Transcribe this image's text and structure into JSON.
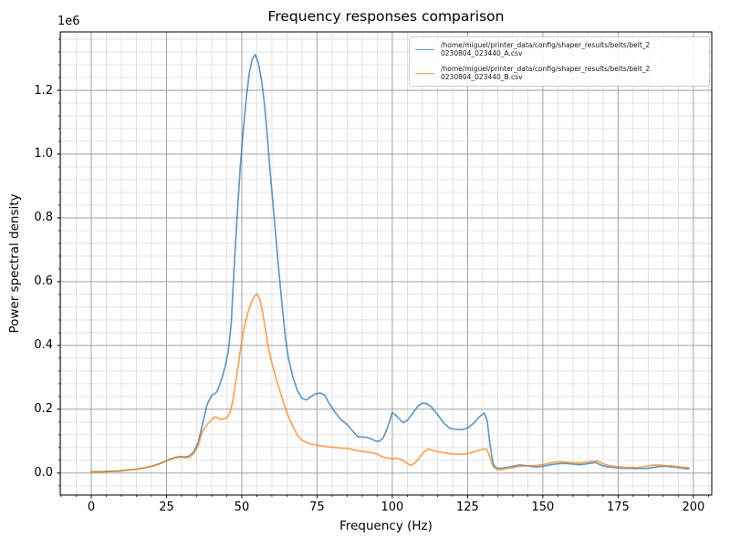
{
  "figure": {
    "title": "Frequency responses comparison",
    "background_color": "#ffffff"
  },
  "chart_data": {
    "type": "line",
    "title": "Frequency responses comparison",
    "xlabel": "Frequency (Hz)",
    "ylabel": "Power spectral density",
    "y_offset_label": "1e6",
    "y_units_note": "y values expressed in multiples of 1e6 (axis offset text)",
    "xlim": [
      -10.3,
      206.1
    ],
    "ylim": [
      -0.069,
      1.383
    ],
    "x_tick_values": [
      0,
      25,
      50,
      75,
      100,
      125,
      150,
      175,
      200
    ],
    "x_tick_labels": [
      "0",
      "25",
      "50",
      "75",
      "100",
      "125",
      "150",
      "175",
      "200"
    ],
    "y_tick_values": [
      0,
      0.2,
      0.4,
      0.6,
      0.8,
      1.0,
      1.2
    ],
    "y_tick_labels": [
      "0.0",
      "0.2",
      "0.4",
      "0.6",
      "0.8",
      "1.0",
      "1.2"
    ],
    "x_minor_step": 5,
    "y_minor_step": 0.04,
    "grid": "both",
    "legend_position": "upper right",
    "colors": {
      "series_a": "rgba(31,119,180,0.72)",
      "series_b": "rgba(255,127,14,0.72)",
      "grid_major": "#a3a3a3",
      "grid_minor": "#dcdcdc",
      "spine": "#000000",
      "legend_border": "#cccccc"
    },
    "series": [
      {
        "name": "belt_20230804_023440_A",
        "label_line1": "/home/miguel/printer_data/config/shaper_results/belts/belt_2",
        "label_line2": "0230804_023440_A.csv",
        "color_key": "series_a",
        "points": [
          [
            0,
            0.004
          ],
          [
            3,
            0.004
          ],
          [
            6,
            0.005
          ],
          [
            9,
            0.006
          ],
          [
            12,
            0.009
          ],
          [
            15,
            0.012
          ],
          [
            18,
            0.017
          ],
          [
            20,
            0.021
          ],
          [
            22,
            0.027
          ],
          [
            24,
            0.034
          ],
          [
            26,
            0.043
          ],
          [
            28,
            0.049
          ],
          [
            29.5,
            0.052
          ],
          [
            31,
            0.05
          ],
          [
            32.5,
            0.053
          ],
          [
            34,
            0.066
          ],
          [
            35.5,
            0.095
          ],
          [
            37,
            0.155
          ],
          [
            38.5,
            0.215
          ],
          [
            40,
            0.243
          ],
          [
            41.5,
            0.252
          ],
          [
            42.5,
            0.272
          ],
          [
            43.5,
            0.3
          ],
          [
            44.5,
            0.335
          ],
          [
            45.5,
            0.38
          ],
          [
            46.5,
            0.47
          ],
          [
            47.5,
            0.65
          ],
          [
            48.5,
            0.81
          ],
          [
            49.5,
            0.96
          ],
          [
            50.5,
            1.075
          ],
          [
            51.5,
            1.175
          ],
          [
            52.5,
            1.255
          ],
          [
            53.5,
            1.298
          ],
          [
            54.5,
            1.312
          ],
          [
            55.5,
            1.285
          ],
          [
            56.5,
            1.235
          ],
          [
            57.5,
            1.16
          ],
          [
            58.5,
            1.055
          ],
          [
            59.5,
            0.935
          ],
          [
            60.5,
            0.83
          ],
          [
            61.5,
            0.72
          ],
          [
            62.5,
            0.615
          ],
          [
            63.5,
            0.515
          ],
          [
            64.5,
            0.425
          ],
          [
            65.5,
            0.36
          ],
          [
            67,
            0.3
          ],
          [
            68.5,
            0.258
          ],
          [
            70,
            0.234
          ],
          [
            71.5,
            0.229
          ],
          [
            73,
            0.24
          ],
          [
            74.5,
            0.248
          ],
          [
            76,
            0.251
          ],
          [
            77.5,
            0.245
          ],
          [
            79,
            0.219
          ],
          [
            81,
            0.19
          ],
          [
            83,
            0.167
          ],
          [
            85,
            0.152
          ],
          [
            87,
            0.13
          ],
          [
            88.5,
            0.114
          ],
          [
            90,
            0.113
          ],
          [
            91.5,
            0.112
          ],
          [
            93,
            0.107
          ],
          [
            94.5,
            0.1
          ],
          [
            95.5,
            0.099
          ],
          [
            97,
            0.11
          ],
          [
            98.5,
            0.145
          ],
          [
            100,
            0.19
          ],
          [
            101.5,
            0.178
          ],
          [
            103.5,
            0.158
          ],
          [
            105,
            0.165
          ],
          [
            107,
            0.19
          ],
          [
            108.5,
            0.21
          ],
          [
            110,
            0.219
          ],
          [
            111.5,
            0.218
          ],
          [
            113,
            0.207
          ],
          [
            115,
            0.184
          ],
          [
            117,
            0.158
          ],
          [
            119,
            0.141
          ],
          [
            121,
            0.137
          ],
          [
            123,
            0.136
          ],
          [
            125,
            0.141
          ],
          [
            127,
            0.156
          ],
          [
            129,
            0.177
          ],
          [
            130.5,
            0.188
          ],
          [
            131.5,
            0.165
          ],
          [
            132.5,
            0.085
          ],
          [
            133.5,
            0.028
          ],
          [
            134.5,
            0.016
          ],
          [
            136,
            0.015
          ],
          [
            138,
            0.017
          ],
          [
            140,
            0.021
          ],
          [
            142,
            0.025
          ],
          [
            144,
            0.024
          ],
          [
            146,
            0.021
          ],
          [
            148,
            0.019
          ],
          [
            150,
            0.021
          ],
          [
            152,
            0.025
          ],
          [
            154,
            0.028
          ],
          [
            156,
            0.03
          ],
          [
            158,
            0.03
          ],
          [
            160,
            0.028
          ],
          [
            162,
            0.026
          ],
          [
            164,
            0.028
          ],
          [
            166,
            0.031
          ],
          [
            167.5,
            0.033
          ],
          [
            169,
            0.026
          ],
          [
            171,
            0.02
          ],
          [
            173,
            0.018
          ],
          [
            175,
            0.016
          ],
          [
            177,
            0.015
          ],
          [
            179,
            0.015
          ],
          [
            181,
            0.014
          ],
          [
            183,
            0.014
          ],
          [
            185,
            0.015
          ],
          [
            187,
            0.018
          ],
          [
            189,
            0.021
          ],
          [
            191,
            0.021
          ],
          [
            193,
            0.019
          ],
          [
            195,
            0.017
          ],
          [
            197,
            0.014
          ],
          [
            198.5,
            0.013
          ]
        ]
      },
      {
        "name": "belt_20230804_023440_B",
        "label_line1": "/home/miguel/printer_data/config/shaper_results/belts/belt_2",
        "label_line2": "0230804_023440_B.csv",
        "color_key": "series_b",
        "points": [
          [
            0,
            0.004
          ],
          [
            3,
            0.004
          ],
          [
            6,
            0.005
          ],
          [
            9,
            0.006
          ],
          [
            12,
            0.009
          ],
          [
            15,
            0.012
          ],
          [
            18,
            0.017
          ],
          [
            20,
            0.021
          ],
          [
            22,
            0.027
          ],
          [
            24,
            0.034
          ],
          [
            26,
            0.042
          ],
          [
            28,
            0.048
          ],
          [
            29.5,
            0.05
          ],
          [
            31,
            0.048
          ],
          [
            32.5,
            0.05
          ],
          [
            34,
            0.06
          ],
          [
            35.5,
            0.085
          ],
          [
            37,
            0.132
          ],
          [
            38.5,
            0.152
          ],
          [
            40,
            0.167
          ],
          [
            41,
            0.176
          ],
          [
            42,
            0.172
          ],
          [
            43,
            0.168
          ],
          [
            44,
            0.169
          ],
          [
            45,
            0.173
          ],
          [
            46,
            0.188
          ],
          [
            47,
            0.225
          ],
          [
            48,
            0.285
          ],
          [
            49,
            0.35
          ],
          [
            50,
            0.415
          ],
          [
            51,
            0.465
          ],
          [
            52,
            0.502
          ],
          [
            53,
            0.53
          ],
          [
            54,
            0.551
          ],
          [
            55,
            0.562
          ],
          [
            56,
            0.545
          ],
          [
            57,
            0.5
          ],
          [
            58,
            0.442
          ],
          [
            59,
            0.386
          ],
          [
            60,
            0.345
          ],
          [
            61,
            0.31
          ],
          [
            62,
            0.278
          ],
          [
            63,
            0.247
          ],
          [
            64,
            0.217
          ],
          [
            65,
            0.19
          ],
          [
            66,
            0.166
          ],
          [
            67,
            0.146
          ],
          [
            68,
            0.127
          ],
          [
            69,
            0.113
          ],
          [
            70,
            0.103
          ],
          [
            71.5,
            0.096
          ],
          [
            73,
            0.091
          ],
          [
            75,
            0.087
          ],
          [
            77,
            0.085
          ],
          [
            79,
            0.082
          ],
          [
            81,
            0.08
          ],
          [
            83,
            0.078
          ],
          [
            85,
            0.077
          ],
          [
            87,
            0.073
          ],
          [
            89,
            0.069
          ],
          [
            91,
            0.066
          ],
          [
            93,
            0.064
          ],
          [
            95,
            0.06
          ],
          [
            96.5,
            0.051
          ],
          [
            98,
            0.048
          ],
          [
            100,
            0.045
          ],
          [
            101.5,
            0.047
          ],
          [
            103,
            0.042
          ],
          [
            104.5,
            0.033
          ],
          [
            106,
            0.024
          ],
          [
            107.5,
            0.031
          ],
          [
            109,
            0.048
          ],
          [
            110.5,
            0.066
          ],
          [
            112,
            0.075
          ],
          [
            113.5,
            0.071
          ],
          [
            115,
            0.067
          ],
          [
            117,
            0.064
          ],
          [
            119,
            0.061
          ],
          [
            121,
            0.059
          ],
          [
            123,
            0.059
          ],
          [
            125,
            0.061
          ],
          [
            127,
            0.066
          ],
          [
            129,
            0.072
          ],
          [
            130.5,
            0.076
          ],
          [
            131.5,
            0.072
          ],
          [
            132.5,
            0.048
          ],
          [
            133.5,
            0.02
          ],
          [
            135,
            0.009
          ],
          [
            136.5,
            0.011
          ],
          [
            138,
            0.014
          ],
          [
            140,
            0.017
          ],
          [
            142,
            0.021
          ],
          [
            144,
            0.022
          ],
          [
            146,
            0.023
          ],
          [
            148,
            0.024
          ],
          [
            150,
            0.026
          ],
          [
            152,
            0.031
          ],
          [
            154,
            0.034
          ],
          [
            156,
            0.035
          ],
          [
            158,
            0.034
          ],
          [
            160,
            0.032
          ],
          [
            162,
            0.031
          ],
          [
            164,
            0.033
          ],
          [
            166,
            0.036
          ],
          [
            168,
            0.038
          ],
          [
            169.5,
            0.031
          ],
          [
            171,
            0.026
          ],
          [
            173,
            0.022
          ],
          [
            175,
            0.02
          ],
          [
            177,
            0.018
          ],
          [
            179,
            0.017
          ],
          [
            181,
            0.017
          ],
          [
            183,
            0.019
          ],
          [
            185,
            0.023
          ],
          [
            187,
            0.025
          ],
          [
            189,
            0.025
          ],
          [
            191,
            0.023
          ],
          [
            193,
            0.022
          ],
          [
            195,
            0.02
          ],
          [
            197,
            0.018
          ],
          [
            198.5,
            0.017
          ]
        ]
      }
    ]
  }
}
